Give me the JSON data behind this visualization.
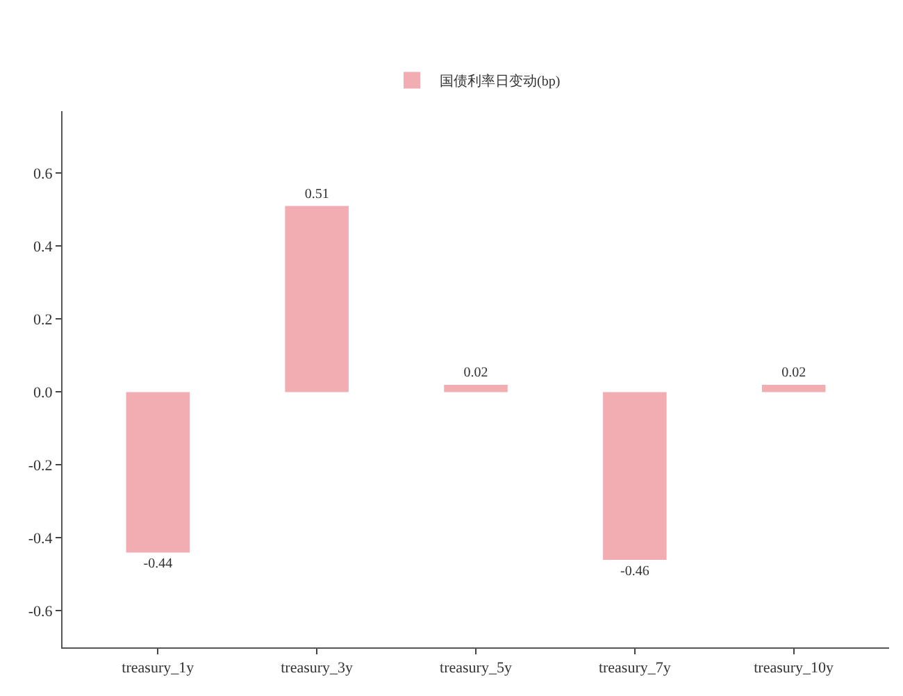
{
  "chart_data": {
    "type": "bar",
    "categories": [
      "treasury_1y",
      "treasury_3y",
      "treasury_5y",
      "treasury_7y",
      "treasury_10y"
    ],
    "series": [
      {
        "name": "国债利率日变动(bp)",
        "color": "#f2adb3",
        "values": [
          -0.44,
          0.51,
          0.02,
          -0.46,
          0.02
        ]
      }
    ],
    "ylim": [
      -0.7,
      0.77
    ],
    "yticks": [
      -0.6,
      -0.4,
      -0.2,
      {
        "value": 0,
        "label": "0.0"
      },
      0.2,
      0.4,
      0.6
    ],
    "data_labels": true,
    "legend": "top"
  }
}
